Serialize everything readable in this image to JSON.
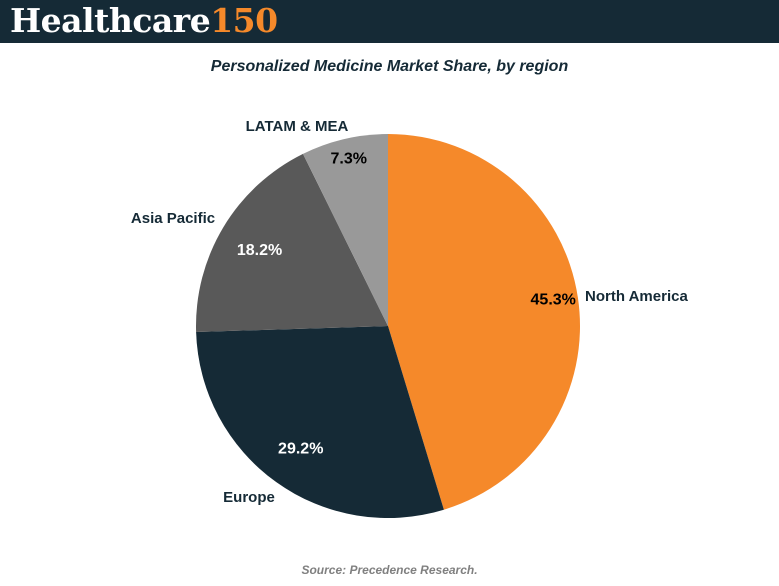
{
  "header": {
    "logo_word": "Healthcare",
    "logo_number": "150",
    "background_color": "#152a36",
    "accent_color": "#f5892a"
  },
  "chart_data": {
    "type": "pie",
    "title": "Personalized Medicine Market Share, by region",
    "unit": "%",
    "slices": [
      {
        "label": "North America",
        "value": 45.3,
        "value_label": "45.3%",
        "color": "#f5892a"
      },
      {
        "label": "Europe",
        "value": 29.2,
        "value_label": "29.2%",
        "color": "#152a36"
      },
      {
        "label": "Asia Pacific",
        "value": 18.2,
        "value_label": "18.2%",
        "color": "#595959"
      },
      {
        "label": "LATAM & MEA",
        "value": 7.3,
        "value_label": "7.3%",
        "color": "#999999"
      }
    ]
  },
  "footer": {
    "source": "Source: Precedence Research."
  }
}
